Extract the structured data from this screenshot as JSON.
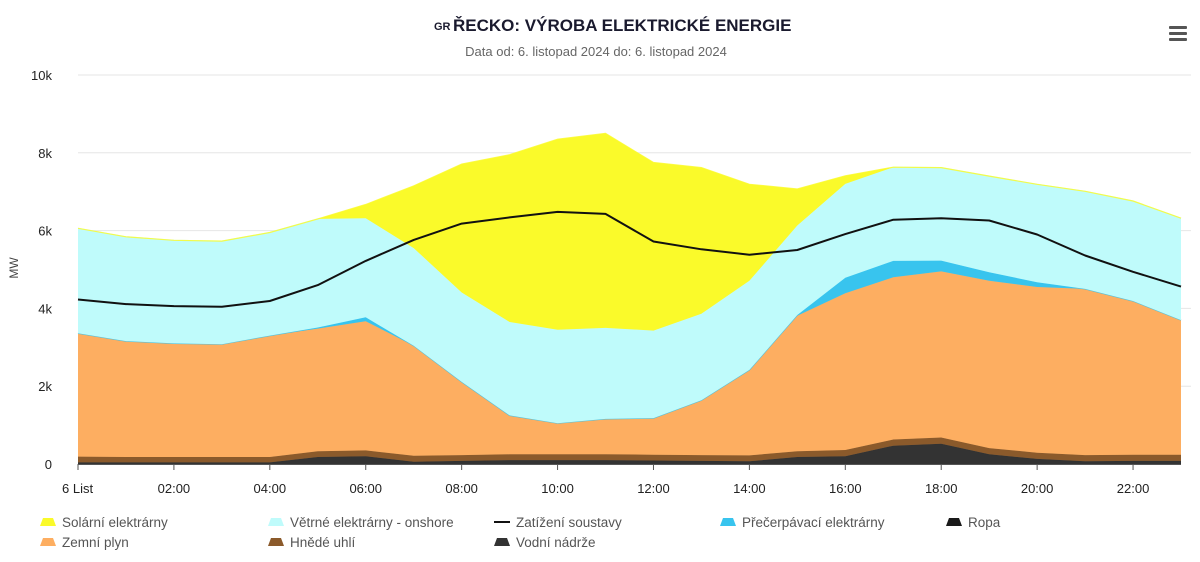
{
  "header": {
    "flag_code": "GR",
    "title": "ŘECKO: VÝROBA ELEKTRICKÉ ENERGIE",
    "subtitle": "Data od: 6. listopad 2024 do: 6. listopad 2024",
    "menu_icon": "hamburger-menu-icon"
  },
  "chart_data": {
    "type": "area",
    "stacked": true,
    "x": [
      0,
      1,
      2,
      3,
      4,
      5,
      6,
      7,
      8,
      9,
      10,
      11,
      12,
      13,
      14,
      15,
      16,
      17,
      18,
      19,
      20,
      21,
      22,
      23
    ],
    "x_unit": "hour",
    "xticks": [
      {
        "x": 0,
        "label": "6 List"
      },
      {
        "x": 2,
        "label": "02:00"
      },
      {
        "x": 4,
        "label": "04:00"
      },
      {
        "x": 6,
        "label": "06:00"
      },
      {
        "x": 8,
        "label": "08:00"
      },
      {
        "x": 10,
        "label": "10:00"
      },
      {
        "x": 12,
        "label": "12:00"
      },
      {
        "x": 14,
        "label": "14:00"
      },
      {
        "x": 16,
        "label": "16:00"
      },
      {
        "x": 18,
        "label": "18:00"
      },
      {
        "x": 20,
        "label": "20:00"
      },
      {
        "x": 22,
        "label": "22:00"
      }
    ],
    "ylim": [
      0,
      10000
    ],
    "yticks": [
      {
        "value": 0,
        "label": "0"
      },
      {
        "value": 2000,
        "label": "2k"
      },
      {
        "value": 4000,
        "label": "4k"
      },
      {
        "value": 6000,
        "label": "6k"
      },
      {
        "value": 8000,
        "label": "8k"
      },
      {
        "value": 10000,
        "label": "10k"
      }
    ],
    "ylabel": "MW",
    "grid": true,
    "legend_position": "bottom",
    "series": [
      {
        "key": "vodni",
        "name": "Vodní nádrže",
        "color": "#333333",
        "values": [
          40,
          40,
          40,
          40,
          40,
          180,
          200,
          60,
          80,
          100,
          100,
          100,
          90,
          80,
          70,
          180,
          200,
          470,
          520,
          250,
          130,
          70,
          80,
          80
        ]
      },
      {
        "key": "ropa",
        "name": "Ropa",
        "color": "#1a1a1a",
        "values": [
          0,
          0,
          0,
          0,
          0,
          0,
          0,
          0,
          0,
          0,
          0,
          0,
          0,
          0,
          0,
          0,
          0,
          0,
          0,
          0,
          0,
          0,
          0,
          0
        ]
      },
      {
        "key": "uhli",
        "name": "Hnědé uhlí",
        "color": "#8B5a2b",
        "values": [
          150,
          140,
          140,
          140,
          140,
          150,
          150,
          150,
          150,
          150,
          150,
          150,
          150,
          150,
          150,
          150,
          160,
          160,
          160,
          160,
          160,
          160,
          160,
          160
        ]
      },
      {
        "key": "plyn",
        "name": "Zemní plyn",
        "color": "#FDAE61",
        "values": [
          3170,
          2980,
          2920,
          2900,
          3120,
          3150,
          3320,
          2830,
          1880,
          1000,
          800,
          910,
          940,
          1410,
          2200,
          3480,
          4030,
          4170,
          4270,
          4300,
          4260,
          4270,
          3950,
          3460
        ]
      },
      {
        "key": "precerp",
        "name": "Přečerpávací elektrárny",
        "color": "#38C4EE",
        "values": [
          0,
          0,
          0,
          0,
          0,
          30,
          100,
          0,
          0,
          0,
          0,
          0,
          0,
          0,
          0,
          20,
          400,
          420,
          280,
          220,
          120,
          0,
          0,
          0
        ]
      },
      {
        "key": "vitr",
        "name": "Větrné elektrárny - onshore",
        "color": "#BFFBFB",
        "values": [
          2700,
          2680,
          2650,
          2650,
          2650,
          2790,
          2550,
          2510,
          2300,
          2400,
          2400,
          2340,
          2250,
          2220,
          2290,
          2300,
          2410,
          2410,
          2390,
          2470,
          2520,
          2510,
          2570,
          2620
        ]
      },
      {
        "key": "solar",
        "name": "Solární elektrárny",
        "color": "#FAFA2A",
        "values": [
          0,
          0,
          0,
          0,
          0,
          0,
          350,
          1600,
          3300,
          4300,
          4900,
          5000,
          4320,
          3760,
          2480,
          940,
          210,
          0,
          0,
          0,
          0,
          0,
          0,
          0
        ]
      }
    ],
    "load": {
      "name": "Zatížení soustavy",
      "color": "#111111",
      "values": [
        4230,
        4110,
        4060,
        4040,
        4190,
        4600,
        5220,
        5760,
        6180,
        6340,
        6480,
        6430,
        5720,
        5520,
        5380,
        5500,
        5910,
        6280,
        6320,
        6260,
        5900,
        5360,
        4940,
        4560
      ]
    },
    "legend_order": [
      {
        "name": "Solární elektrárny",
        "color": "#FAFA2A",
        "kind": "area"
      },
      {
        "name": "Větrné elektrárny - onshore",
        "color": "#BFFBFB",
        "kind": "area"
      },
      {
        "name": "Zatížení soustavy",
        "color": "#111111",
        "kind": "line"
      },
      {
        "name": "Přečerpávací elektrárny",
        "color": "#38C4EE",
        "kind": "area"
      },
      {
        "name": "Ropa",
        "color": "#1a1a1a",
        "kind": "area"
      },
      {
        "name": "Zemní plyn",
        "color": "#FDAE61",
        "kind": "area"
      },
      {
        "name": "Hnědé uhlí",
        "color": "#8B5a2b",
        "kind": "area"
      },
      {
        "name": "Vodní nádrže",
        "color": "#333333",
        "kind": "area"
      }
    ]
  }
}
